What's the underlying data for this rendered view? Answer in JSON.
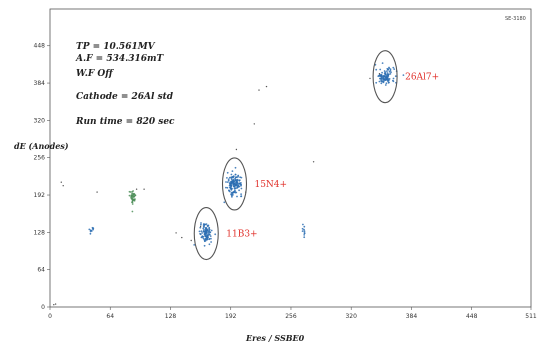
{
  "chart_data": {
    "type": "scatter",
    "title": "",
    "corner_label": "SE-3180",
    "info_lines": [
      "TP = 10.561MV",
      "A.F = 534.316mT",
      "W.F Off",
      "Cathode = 26Al std",
      "Run time = 820 sec"
    ],
    "xlabel": "Eres / SSBE0",
    "ylabel": "dE (Anodes)",
    "xlim": [
      0,
      511
    ],
    "ylim": [
      0,
      511
    ],
    "x_ticks": [
      "0",
      "64",
      "128",
      "192",
      "256",
      "320",
      "384",
      "448",
      "511"
    ],
    "y_ticks": [
      "0",
      "64",
      "128",
      "192",
      "256",
      "320",
      "384",
      "448"
    ],
    "grid": false,
    "peaks": [
      {
        "label": "26Al7+",
        "x": 356,
        "y": 395
      },
      {
        "label": "15N4+",
        "x": 196,
        "y": 211
      },
      {
        "label": "11B3+",
        "x": 166,
        "y": 126
      }
    ],
    "clusters": [
      {
        "x": 356,
        "y": 395,
        "sx": 5,
        "sy": 7,
        "n": 110,
        "color": "#2d6fb3"
      },
      {
        "x": 196,
        "y": 211,
        "sx": 4,
        "sy": 9,
        "n": 150,
        "color": "#2d6fb3"
      },
      {
        "x": 166,
        "y": 126,
        "sx": 3,
        "sy": 8,
        "n": 110,
        "color": "#2d6fb3"
      },
      {
        "x": 88,
        "y": 188,
        "sx": 2,
        "sy": 6,
        "n": 45,
        "color": "#4f8f5a"
      },
      {
        "x": 44,
        "y": 133,
        "sx": 1,
        "sy": 4,
        "n": 10,
        "color": "#2d6fb3"
      },
      {
        "x": 270,
        "y": 130,
        "sx": 1,
        "sy": 5,
        "n": 10,
        "color": "#2d6fb3"
      }
    ],
    "stray_points": [
      [
        4,
        4
      ],
      [
        6,
        5
      ],
      [
        12,
        214
      ],
      [
        14,
        208
      ],
      [
        50,
        197
      ],
      [
        92,
        202
      ],
      [
        100,
        202
      ],
      [
        134,
        127
      ],
      [
        140,
        119
      ],
      [
        150,
        114
      ],
      [
        198,
        270
      ],
      [
        222,
        372
      ],
      [
        230,
        378
      ],
      [
        217,
        314
      ],
      [
        280,
        249
      ],
      [
        340,
        392
      ],
      [
        350,
        400
      ],
      [
        208,
        197
      ],
      [
        160,
        138
      ]
    ]
  }
}
